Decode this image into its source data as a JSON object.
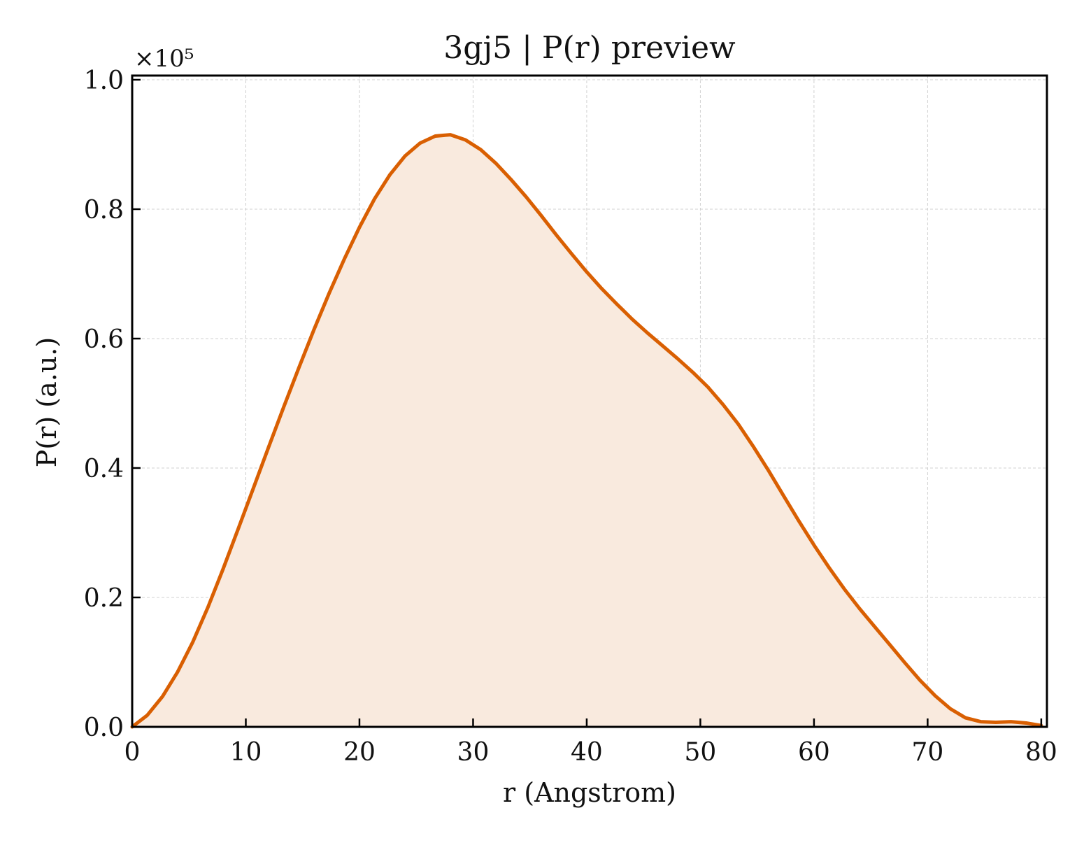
{
  "chart_data": {
    "type": "area",
    "title": "3gj5 | P(r) preview",
    "xlabel": "r (Angstrom)",
    "ylabel": "P(r) (a.u.)",
    "y_scale_label": "×10⁵",
    "xlim": [
      0,
      80.5
    ],
    "ylim": [
      0,
      1.0
    ],
    "x_ticks": [
      0,
      10,
      20,
      30,
      40,
      50,
      60,
      70,
      80
    ],
    "x_tick_labels": [
      "0",
      "10",
      "20",
      "30",
      "40",
      "50",
      "60",
      "70",
      "80"
    ],
    "y_ticks": [
      0.0,
      0.2,
      0.4,
      0.6,
      0.8,
      1.0
    ],
    "y_tick_labels": [
      "0.0",
      "0.2",
      "0.4",
      "0.6",
      "0.8",
      "1.0"
    ],
    "grid": true,
    "colors": {
      "line": "#d95f02",
      "fill": "#f9eade",
      "grid": "#d0d0d0",
      "axes": "#000000"
    },
    "series": [
      {
        "x": [
          0,
          1.33,
          2.67,
          4.0,
          5.33,
          6.67,
          8.0,
          9.33,
          10.67,
          12.0,
          13.33,
          14.67,
          16.0,
          17.33,
          18.67,
          20.0,
          21.33,
          22.67,
          24.0,
          25.33,
          26.67,
          28.0,
          29.33,
          30.67,
          32.0,
          33.33,
          34.67,
          36.0,
          37.33,
          38.67,
          40.0,
          41.33,
          42.67,
          44.0,
          45.33,
          46.67,
          48.0,
          49.33,
          50.67,
          52.0,
          53.33,
          54.67,
          56.0,
          57.33,
          58.67,
          60.0,
          61.33,
          62.67,
          64.0,
          65.33,
          66.67,
          68.0,
          69.33,
          70.67,
          72.0,
          73.33,
          74.67,
          76.0,
          77.33,
          78.67,
          80.0
        ],
        "y": [
          0.0,
          0.018,
          0.047,
          0.085,
          0.131,
          0.185,
          0.244,
          0.306,
          0.369,
          0.432,
          0.494,
          0.555,
          0.614,
          0.67,
          0.723,
          0.772,
          0.816,
          0.853,
          0.882,
          0.902,
          0.913,
          0.915,
          0.907,
          0.892,
          0.871,
          0.846,
          0.819,
          0.79,
          0.76,
          0.731,
          0.703,
          0.677,
          0.653,
          0.63,
          0.609,
          0.589,
          0.569,
          0.548,
          0.525,
          0.498,
          0.468,
          0.433,
          0.396,
          0.357,
          0.318,
          0.281,
          0.246,
          0.213,
          0.183,
          0.155,
          0.127,
          0.099,
          0.072,
          0.048,
          0.028,
          0.014,
          0.008,
          0.007,
          0.008,
          0.006,
          0.002
        ]
      }
    ]
  }
}
